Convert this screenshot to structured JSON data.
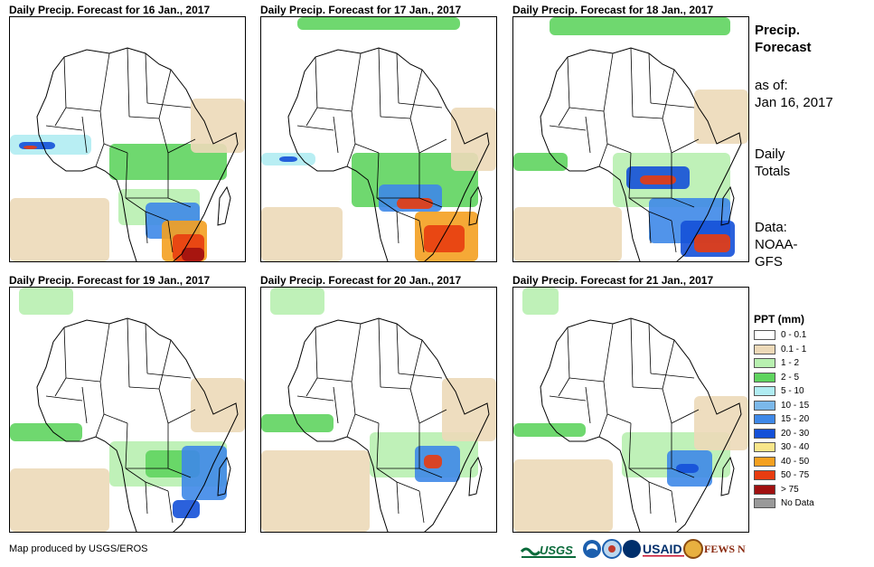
{
  "panels": [
    {
      "title": "Daily Precip. Forecast for 16 Jan., 2017"
    },
    {
      "title": "Daily Precip. Forecast for 17 Jan., 2017"
    },
    {
      "title": "Daily Precip. Forecast for 18 Jan., 2017"
    },
    {
      "title": "Daily Precip. Forecast for 19 Jan., 2017"
    },
    {
      "title": "Daily Precip. Forecast for 20 Jan., 2017"
    },
    {
      "title": "Daily Precip. Forecast for 21 Jan., 2017"
    }
  ],
  "sidebar": {
    "title_line1": "Precip.",
    "title_line2": "Forecast",
    "asof_label": "as of:",
    "asof_date": "Jan 16, 2017",
    "totals_line1": "Daily",
    "totals_line2": "Totals",
    "data_label": "Data:",
    "data_source_line1": "NOAA-",
    "data_source_line2": "GFS"
  },
  "legend": {
    "title": "PPT (mm)",
    "items": [
      {
        "label": "0 - 0.1",
        "color": "#ffffff"
      },
      {
        "label": "0.1 - 1",
        "color": "#ecd9b8"
      },
      {
        "label": "1 - 2",
        "color": "#b8f0b0"
      },
      {
        "label": "2 - 5",
        "color": "#5fd45f"
      },
      {
        "label": "5 - 10",
        "color": "#b0ecf2"
      },
      {
        "label": "10 - 15",
        "color": "#7bb8ea"
      },
      {
        "label": "15 - 20",
        "color": "#3e88e8"
      },
      {
        "label": "20 - 30",
        "color": "#1450d8"
      },
      {
        "label": "30 - 40",
        "color": "#f8e68a"
      },
      {
        "label": "40 - 50",
        "color": "#f4a020"
      },
      {
        "label": "50 - 75",
        "color": "#e83c10"
      },
      {
        "label": "> 75",
        "color": "#a01010"
      },
      {
        "label": "No Data",
        "color": "#999999"
      }
    ]
  },
  "footer": {
    "credit": "Map produced by USGS/EROS"
  }
}
